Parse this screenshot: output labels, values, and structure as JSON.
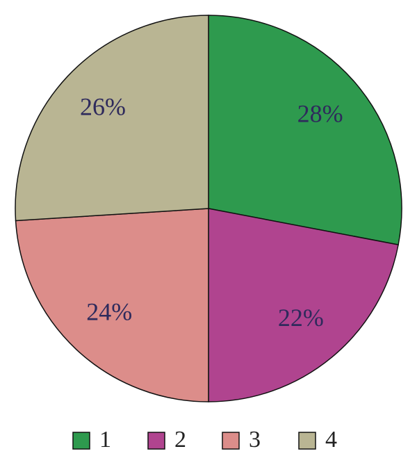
{
  "chart_data": {
    "type": "pie",
    "categories": [
      "1",
      "2",
      "3",
      "4"
    ],
    "values": [
      28,
      22,
      24,
      26
    ],
    "value_labels": [
      "28%",
      "22%",
      "24%",
      "26%"
    ],
    "colors": [
      "#2e9a4e",
      "#b0448f",
      "#dc8d8a",
      "#b9b593"
    ]
  }
}
